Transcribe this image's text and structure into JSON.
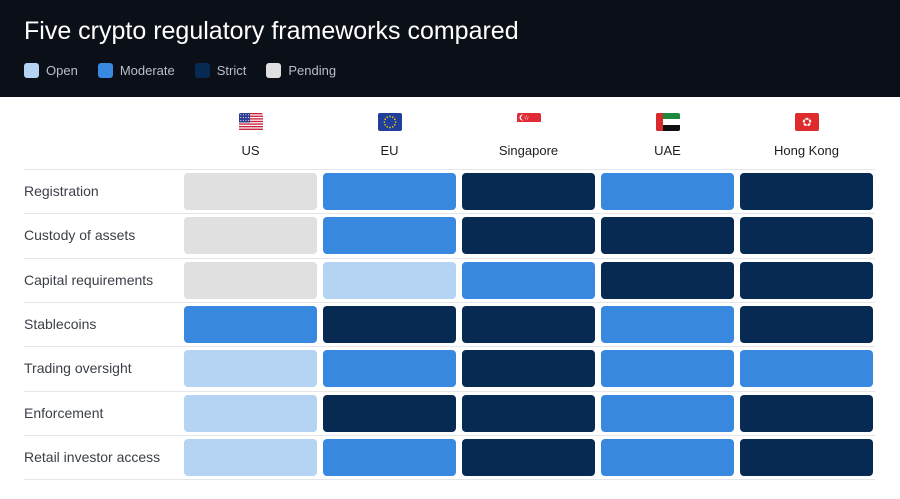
{
  "title": "Five crypto regulatory frameworks compared",
  "colors": {
    "Open": "#b5d3f3",
    "Moderate": "#3888e0",
    "Strict": "#062a52",
    "Pending": "#e0e0e0",
    "header_bg": "#0b0f17"
  },
  "legend": [
    {
      "label": "Open",
      "color": "#b5d3f3"
    },
    {
      "label": "Moderate",
      "color": "#3888e0"
    },
    {
      "label": "Strict",
      "color": "#062a52"
    },
    {
      "label": "Pending",
      "color": "#e0e0e0"
    }
  ],
  "chart_data": {
    "type": "heatmap",
    "title": "Five crypto regulatory frameworks compared",
    "legend_position": "top-left",
    "columns": [
      {
        "label": "US",
        "flag": "us-flag-icon"
      },
      {
        "label": "EU",
        "flag": "eu-flag-icon"
      },
      {
        "label": "Singapore",
        "flag": "singapore-flag-icon"
      },
      {
        "label": "UAE",
        "flag": "uae-flag-icon"
      },
      {
        "label": "Hong Kong",
        "flag": "hong-kong-flag-icon"
      }
    ],
    "rows": [
      {
        "label": "Registration",
        "values": [
          "Pending",
          "Moderate",
          "Strict",
          "Moderate",
          "Strict"
        ]
      },
      {
        "label": "Custody of assets",
        "values": [
          "Pending",
          "Moderate",
          "Strict",
          "Strict",
          "Strict"
        ]
      },
      {
        "label": "Capital requirements",
        "values": [
          "Pending",
          "Open",
          "Moderate",
          "Strict",
          "Strict"
        ]
      },
      {
        "label": "Stablecoins",
        "values": [
          "Moderate",
          "Strict",
          "Strict",
          "Moderate",
          "Strict"
        ]
      },
      {
        "label": "Trading oversight",
        "values": [
          "Open",
          "Moderate",
          "Strict",
          "Moderate",
          "Moderate"
        ]
      },
      {
        "label": "Enforcement",
        "values": [
          "Open",
          "Strict",
          "Strict",
          "Moderate",
          "Strict"
        ]
      },
      {
        "label": "Retail investor access",
        "values": [
          "Open",
          "Moderate",
          "Strict",
          "Moderate",
          "Strict"
        ]
      }
    ]
  }
}
